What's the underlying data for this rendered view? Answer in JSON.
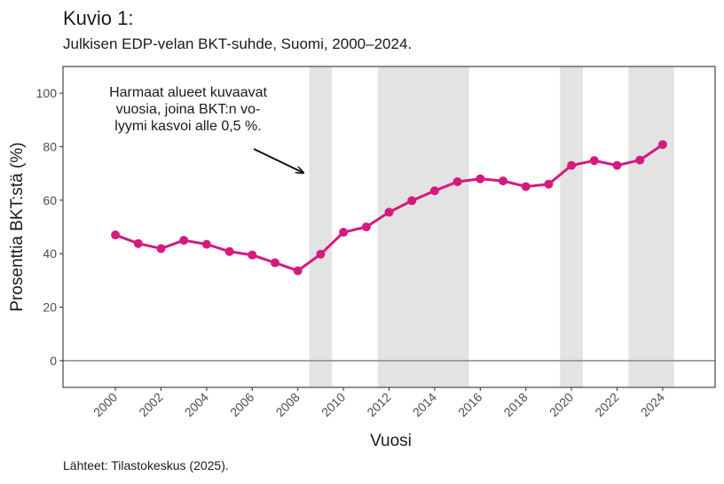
{
  "figure_label": "Kuvio 1:",
  "subtitle": "Julkisen EDP-velan BKT-suhde, Suomi, 2000–2024.",
  "annotation": "Harmaat alueet kuvaavat vuosia, joina BKT:n volyymi kasvoi alle 0,5 %.",
  "annotation_lines": [
    "Harmaat alueet kuvaavat",
    "vuosia, joina BKT:n vo-",
    "lyymi kasvoi alle 0,5 %."
  ],
  "source": "Lähteet: Tilastokeskus (2025).",
  "colors": {
    "line": "#d6197f",
    "shade": "#e3e3e3",
    "zero_line": "#7f8c92",
    "frame": "#222222"
  },
  "chart_data": {
    "type": "line",
    "title": "Julkisen EDP-velan BKT-suhde, Suomi, 2000–2024.",
    "xlabel": "Vuosi",
    "ylabel": "Prosenttia BKT:stä (%)",
    "x": [
      2000,
      2001,
      2002,
      2003,
      2004,
      2005,
      2006,
      2007,
      2008,
      2009,
      2010,
      2011,
      2012,
      2013,
      2014,
      2015,
      2016,
      2017,
      2018,
      2019,
      2020,
      2021,
      2022,
      2023,
      2024
    ],
    "values": [
      47.0,
      43.8,
      41.9,
      45.0,
      43.5,
      40.8,
      39.5,
      36.6,
      33.6,
      39.8,
      48.0,
      50.0,
      55.5,
      59.8,
      63.5,
      66.9,
      68.0,
      67.2,
      65.1,
      66.0,
      73.0,
      74.8,
      73.0,
      75.0,
      80.8
    ],
    "xticks": [
      2000,
      2002,
      2004,
      2006,
      2008,
      2010,
      2012,
      2014,
      2016,
      2018,
      2020,
      2022,
      2024
    ],
    "yticks": [
      0,
      20,
      40,
      60,
      80,
      100
    ],
    "xlim": [
      1997.7,
      2026.3
    ],
    "ylim": [
      -10,
      110
    ],
    "shaded_periods": [
      [
        2008.5,
        2009.5
      ],
      [
        2011.5,
        2015.5
      ],
      [
        2019.5,
        2020.5
      ],
      [
        2022.5,
        2024.5
      ]
    ],
    "reference_line_y": 0,
    "grid": false,
    "legend": "none"
  }
}
